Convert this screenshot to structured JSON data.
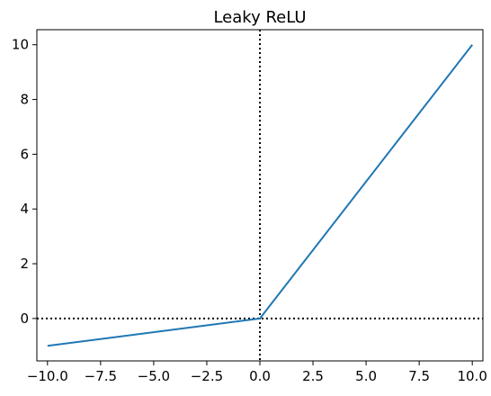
{
  "chart_data": {
    "type": "line",
    "title": "Leaky ReLU",
    "xlabel": "",
    "ylabel": "",
    "xlim": [
      -10.5,
      10.5
    ],
    "ylim": [
      -1.55,
      10.55
    ],
    "x_ticks": [
      -10.0,
      -7.5,
      -5.0,
      -2.5,
      0.0,
      2.5,
      5.0,
      7.5,
      10.0
    ],
    "x_tick_labels": [
      "−10.0",
      "−7.5",
      "−5.0",
      "−2.5",
      "0.0",
      "2.5",
      "5.0",
      "7.5",
      "10.0"
    ],
    "y_ticks": [
      0,
      2,
      4,
      6,
      8,
      10
    ],
    "y_tick_labels": [
      "0",
      "2",
      "4",
      "6",
      "8",
      "10"
    ],
    "grid": false,
    "series": [
      {
        "x": [
          -10,
          0,
          10
        ],
        "y": [
          -1,
          0,
          10
        ],
        "color": "#1f77b4"
      }
    ],
    "reference_lines": [
      {
        "orientation": "vertical",
        "value": 0,
        "style": "dotted",
        "color": "#000000"
      },
      {
        "orientation": "horizontal",
        "value": 0,
        "style": "dotted",
        "color": "#000000"
      }
    ]
  }
}
